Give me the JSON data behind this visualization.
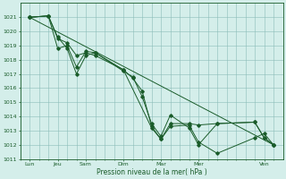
{
  "bg_color": "#d4eeea",
  "grid_color": "#8cbcb8",
  "line_color": "#1a5c2a",
  "xlabel": "Pression niveau de la mer( hPa )",
  "ylim": [
    1011,
    1022
  ],
  "xlim": [
    0,
    14
  ],
  "ytick_vals": [
    1011,
    1012,
    1013,
    1014,
    1015,
    1016,
    1017,
    1018,
    1019,
    1020,
    1021
  ],
  "day_labels": [
    "Lun",
    "Jeu",
    "Sam",
    "Dim",
    "Mar",
    "Mer",
    "Ven"
  ],
  "day_positions": [
    0.5,
    2.0,
    3.5,
    5.5,
    7.5,
    9.5,
    13.0
  ],
  "minor_xtick_positions": [
    0,
    1,
    1.5,
    2,
    2.5,
    3,
    3.5,
    4,
    4.5,
    5,
    5.5,
    6,
    6.5,
    7,
    7.5,
    8,
    8.5,
    9,
    9.5,
    10,
    10.5,
    11,
    11.5,
    12,
    12.5,
    13,
    13.5
  ],
  "series": [
    {
      "points": [
        [
          0.5,
          1021.0
        ],
        [
          1.5,
          1021.1
        ],
        [
          2.0,
          1019.6
        ],
        [
          2.5,
          1018.8
        ],
        [
          3.0,
          1017.0
        ],
        [
          3.5,
          1018.3
        ],
        [
          4.0,
          1018.5
        ],
        [
          5.5,
          1017.3
        ],
        [
          6.0,
          1016.7
        ],
        [
          6.5,
          1015.8
        ],
        [
          7.0,
          1013.3
        ],
        [
          7.5,
          1012.4
        ],
        [
          8.0,
          1013.3
        ],
        [
          9.0,
          1013.4
        ],
        [
          9.5,
          1012.2
        ],
        [
          10.5,
          1011.4
        ],
        [
          12.5,
          1012.5
        ],
        [
          13.0,
          1012.8
        ],
        [
          13.5,
          1012.0
        ]
      ],
      "has_marker": true
    },
    {
      "points": [
        [
          0.5,
          1021.0
        ],
        [
          1.5,
          1021.1
        ],
        [
          2.0,
          1018.8
        ],
        [
          2.5,
          1019.0
        ],
        [
          3.0,
          1017.5
        ],
        [
          3.5,
          1018.6
        ],
        [
          4.0,
          1018.5
        ],
        [
          5.5,
          1017.2
        ],
        [
          6.0,
          1016.8
        ],
        [
          6.5,
          1015.4
        ],
        [
          7.0,
          1013.5
        ],
        [
          7.5,
          1012.6
        ],
        [
          8.0,
          1014.1
        ],
        [
          9.0,
          1013.2
        ],
        [
          9.5,
          1012.0
        ],
        [
          10.5,
          1013.5
        ],
        [
          12.5,
          1013.6
        ],
        [
          13.0,
          1012.5
        ],
        [
          13.5,
          1012.0
        ]
      ],
      "has_marker": true
    },
    {
      "points": [
        [
          0.5,
          1021.0
        ],
        [
          1.5,
          1021.1
        ],
        [
          2.0,
          1019.5
        ],
        [
          2.5,
          1019.2
        ],
        [
          3.0,
          1018.3
        ],
        [
          3.5,
          1018.5
        ],
        [
          4.0,
          1018.3
        ],
        [
          5.5,
          1017.3
        ],
        [
          7.0,
          1013.2
        ],
        [
          7.5,
          1012.4
        ],
        [
          8.0,
          1013.5
        ],
        [
          9.0,
          1013.5
        ],
        [
          9.5,
          1013.4
        ],
        [
          10.5,
          1013.5
        ],
        [
          12.5,
          1013.6
        ],
        [
          13.0,
          1012.5
        ],
        [
          13.5,
          1012.0
        ]
      ],
      "has_marker": true
    },
    {
      "points": [
        [
          0.5,
          1021.0
        ],
        [
          13.5,
          1012.0
        ]
      ],
      "has_marker": false
    }
  ]
}
